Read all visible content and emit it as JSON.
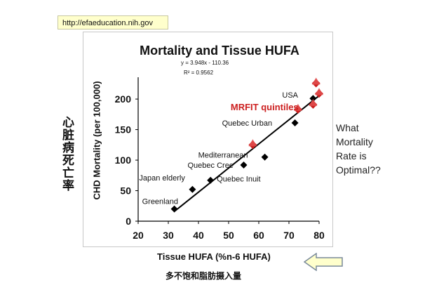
{
  "source_url": "http://efaeducation.nih.gov",
  "side_label_cn": "心脏病死亡率",
  "x_label_cn": "多不饱和脂肪摄入量",
  "right_text": "What\nMortality\nRate is\nOptimal??",
  "chart_data": {
    "type": "scatter",
    "title": "Mortality and Tissue HUFA",
    "equation": "y = 3.948x - 110.36",
    "r_squared": "R² = 0.9562",
    "xlabel": "Tissue HUFA (%n-6 HUFA)",
    "ylabel": "CHD Mortality (per 100,000)",
    "xlim": [
      20,
      80
    ],
    "ylim": [
      0,
      230
    ],
    "xticks": [
      20,
      30,
      40,
      50,
      60,
      70,
      80
    ],
    "yticks": [
      0,
      50,
      100,
      150,
      200
    ],
    "grid": false,
    "trendline": {
      "slope": 3.948,
      "intercept": -110.36,
      "x_range": [
        32,
        80
      ]
    },
    "series": [
      {
        "name": "",
        "marker": "diamond",
        "color": "#000000",
        "points": [
          {
            "x": 32,
            "y": 20
          },
          {
            "x": 38,
            "y": 52
          },
          {
            "x": 44,
            "y": 67
          },
          {
            "x": 55,
            "y": 92
          },
          {
            "x": 62,
            "y": 105
          },
          {
            "x": 72,
            "y": 161
          },
          {
            "x": 78,
            "y": 201
          }
        ]
      },
      {
        "name": "MRFIT quintiles",
        "marker": "diamond-triangle",
        "color": "#cc1f1f",
        "points": [
          {
            "x": 58,
            "y": 125
          },
          {
            "x": 73,
            "y": 183
          },
          {
            "x": 78,
            "y": 191
          },
          {
            "x": 79,
            "y": 226
          },
          {
            "x": 80,
            "y": 209
          }
        ]
      }
    ],
    "annotations": [
      {
        "text": "Greenland",
        "x": 32,
        "y": 20,
        "color": "#111111"
      },
      {
        "text": "Japan elderly",
        "x": 38,
        "y": 52,
        "color": "#111111"
      },
      {
        "text": "Quebec Cree",
        "x": 55,
        "y": 92,
        "color": "#111111"
      },
      {
        "text": "Mediterranean",
        "x": 62,
        "y": 105,
        "color": "#111111"
      },
      {
        "text": "Quebec Inuit",
        "x": 44,
        "y": 67,
        "color": "#111111"
      },
      {
        "text": "Quebec Urban",
        "x": 72,
        "y": 161,
        "color": "#111111"
      },
      {
        "text": "USA",
        "x": 78,
        "y": 201,
        "color": "#111111"
      },
      {
        "text": "MRFIT quintiles",
        "x": 73,
        "y": 183,
        "color": "#cc1f1f"
      }
    ]
  }
}
